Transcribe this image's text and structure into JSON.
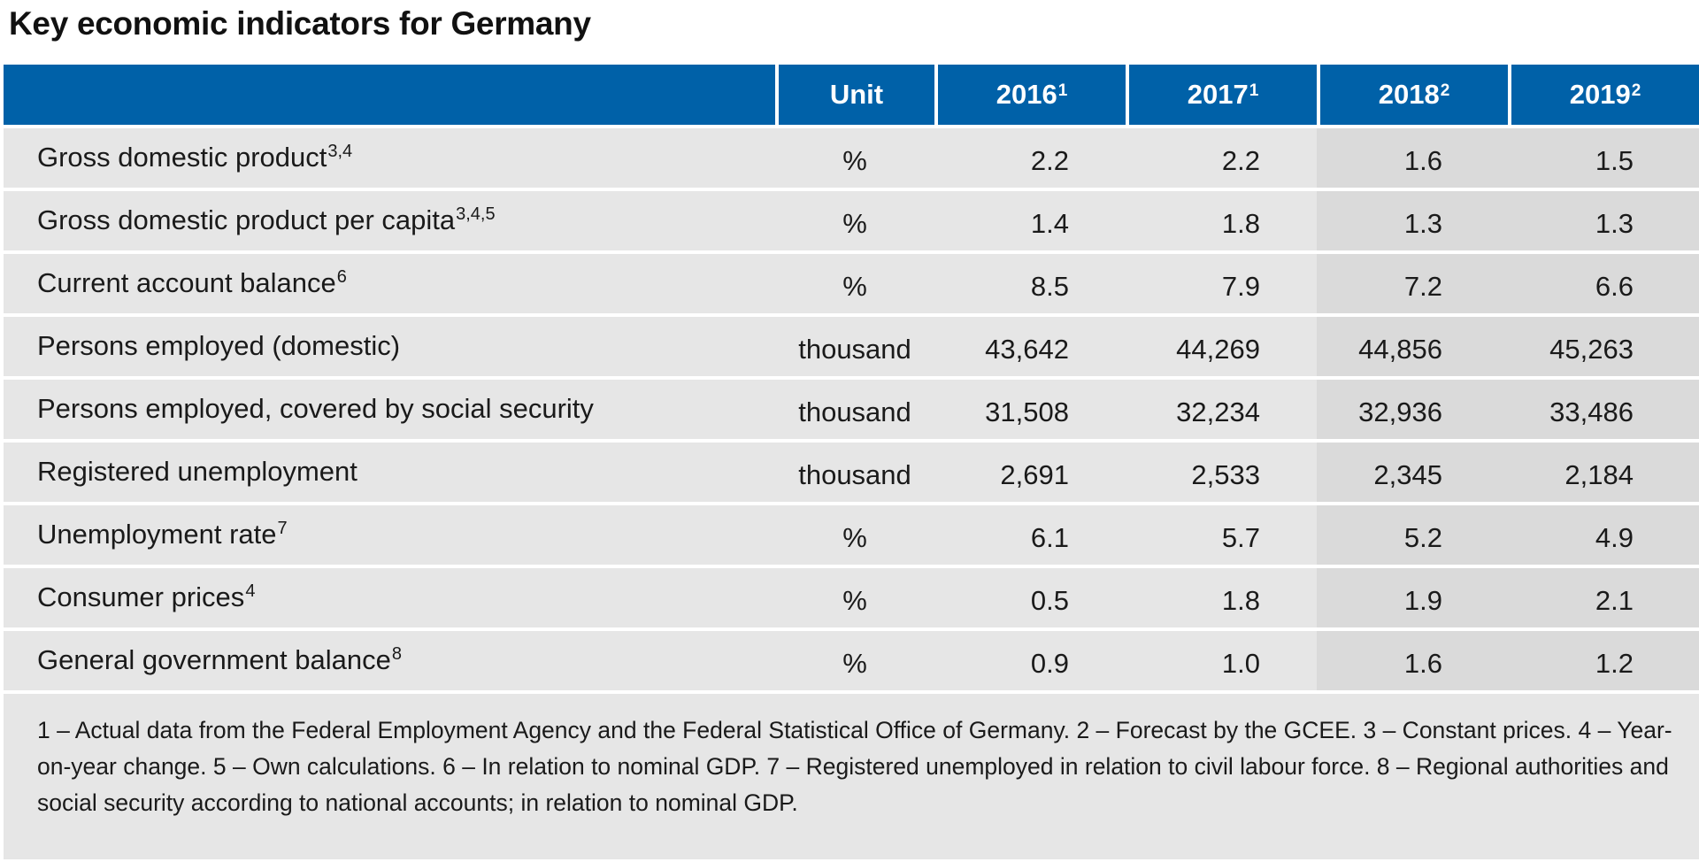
{
  "title": "Key economic indicators for Germany",
  "header": {
    "unit": "Unit",
    "years": [
      {
        "year": "2016",
        "note": "1"
      },
      {
        "year": "2017",
        "note": "1"
      },
      {
        "year": "2018",
        "note": "2"
      },
      {
        "year": "2019",
        "note": "2"
      }
    ]
  },
  "rows": [
    {
      "label": "Gross domestic product",
      "note": "3,4",
      "unit": "%",
      "values": [
        "2.2",
        "2.2",
        "1.6",
        "1.5"
      ]
    },
    {
      "label": "Gross domestic product per capita",
      "note": "3,4,5",
      "unit": "%",
      "values": [
        "1.4",
        "1.8",
        "1.3",
        "1.3"
      ]
    },
    {
      "label": "Current account balance",
      "note": "6",
      "unit": "%",
      "values": [
        "8.5",
        "7.9",
        "7.2",
        "6.6"
      ]
    },
    {
      "label": "Persons employed (domestic)",
      "note": "",
      "unit": "thousand",
      "values": [
        "43,642",
        "44,269",
        "44,856",
        "45,263"
      ]
    },
    {
      "label": "Persons employed, covered by social security",
      "note": "",
      "unit": "thousand",
      "values": [
        "31,508",
        "32,234",
        "32,936",
        "33,486"
      ]
    },
    {
      "label": "Registered unemployment",
      "note": "",
      "unit": "thousand",
      "values": [
        "2,691",
        "2,533",
        "2,345",
        "2,184"
      ]
    },
    {
      "label": "Unemployment rate",
      "note": "7",
      "unit": "%",
      "values": [
        "6.1",
        "5.7",
        "5.2",
        "4.9"
      ]
    },
    {
      "label": "Consumer prices",
      "note": "4",
      "unit": "%",
      "values": [
        "0.5",
        "1.8",
        "1.9",
        "2.1"
      ]
    },
    {
      "label": "General government balance",
      "note": "8",
      "unit": "%",
      "values": [
        "0.9",
        "1.0",
        "1.6",
        "1.2"
      ]
    }
  ],
  "footnotes": "1 – Actual data from the Federal Employment Agency and the Federal Statistical Office of Germany.  2 – Forecast by the GCEE.  3 – Constant prices.  4 – Year-on-year change.  5 – Own calculations.  6 – In relation to nominal GDP.  7 – Registered unemployed in relation to civil labour force.  8 – Regional authorities and social security according to national accounts; in relation to nominal GDP.",
  "colors": {
    "header_bg": "#0061a8",
    "row_bg": "#e6e6e6",
    "forecast_bg": "#dadada"
  }
}
